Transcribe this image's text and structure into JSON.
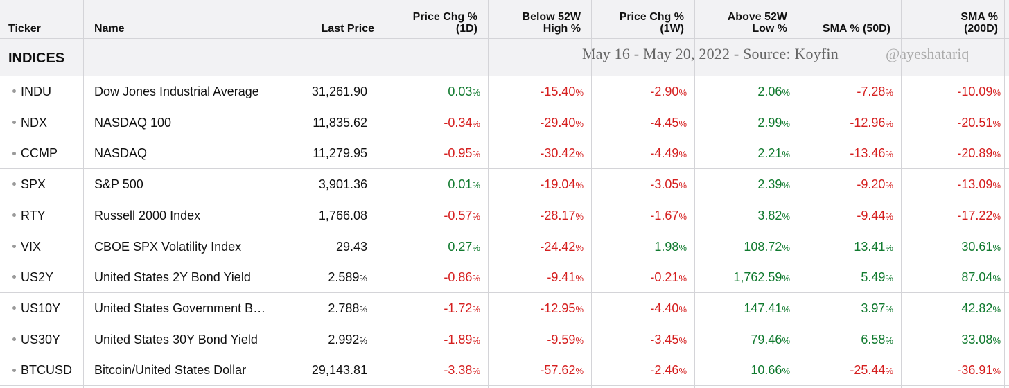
{
  "header": {
    "columns": [
      {
        "line1": "",
        "line2": "Ticker"
      },
      {
        "line1": "",
        "line2": "Name"
      },
      {
        "line1": "",
        "line2": "Last Price"
      },
      {
        "line1": "Price Chg %",
        "line2": "(1D)"
      },
      {
        "line1": "Below 52W",
        "line2": "High %"
      },
      {
        "line1": "Price Chg %",
        "line2": "(1W)"
      },
      {
        "line1": "Above 52W",
        "line2": "Low %"
      },
      {
        "line1": "",
        "line2": "SMA % (50D)"
      },
      {
        "line1": "SMA %",
        "line2": "(200D)"
      }
    ]
  },
  "section": {
    "title": "INDICES",
    "watermark": "May 16 - May 20, 2022 - Source: Koyfin",
    "handle": "@ayeshatariq"
  },
  "colors": {
    "positive": "#117a2f",
    "negative": "#d51f1f"
  },
  "rows": [
    {
      "ticker": "INDU",
      "name": "Dow Jones Industrial Average",
      "price": "31,261.90",
      "price_pct": false,
      "chg1d": "0.03",
      "below52": "-15.40",
      "chg1w": "-2.90",
      "above52": "2.06",
      "sma50": "-7.28",
      "sma200": "-10.09"
    },
    {
      "ticker": "NDX",
      "name": "NASDAQ 100",
      "price": "11,835.62",
      "price_pct": false,
      "chg1d": "-0.34",
      "below52": "-29.40",
      "chg1w": "-4.45",
      "above52": "2.99",
      "sma50": "-12.96",
      "sma200": "-20.51"
    },
    {
      "ticker": "CCMP",
      "name": "NASDAQ",
      "price": "11,279.95",
      "price_pct": false,
      "chg1d": "-0.95",
      "below52": "-30.42",
      "chg1w": "-4.49",
      "above52": "2.21",
      "sma50": "-13.46",
      "sma200": "-20.89"
    },
    {
      "ticker": "SPX",
      "name": "S&P 500",
      "price": "3,901.36",
      "price_pct": false,
      "chg1d": "0.01",
      "below52": "-19.04",
      "chg1w": "-3.05",
      "above52": "2.39",
      "sma50": "-9.20",
      "sma200": "-13.09"
    },
    {
      "ticker": "RTY",
      "name": "Russell 2000 Index",
      "price": "1,766.08",
      "price_pct": false,
      "chg1d": "-0.57",
      "below52": "-28.17",
      "chg1w": "-1.67",
      "above52": "3.82",
      "sma50": "-9.44",
      "sma200": "-17.22"
    },
    {
      "ticker": "VIX",
      "name": "CBOE SPX Volatility Index",
      "price": "29.43",
      "price_pct": false,
      "chg1d": "0.27",
      "below52": "-24.42",
      "chg1w": "1.98",
      "above52": "108.72",
      "sma50": "13.41",
      "sma200": "30.61"
    },
    {
      "ticker": "US2Y",
      "name": "United States 2Y Bond Yield",
      "price": "2.589",
      "price_pct": true,
      "chg1d": "-0.86",
      "below52": "-9.41",
      "chg1w": "-0.21",
      "above52": "1,762.59",
      "sma50": "5.49",
      "sma200": "87.04"
    },
    {
      "ticker": "US10Y",
      "name": "United States Government B…",
      "price": "2.788",
      "price_pct": true,
      "chg1d": "-1.72",
      "below52": "-12.95",
      "chg1w": "-4.40",
      "above52": "147.41",
      "sma50": "3.97",
      "sma200": "42.82"
    },
    {
      "ticker": "US30Y",
      "name": "United States 30Y Bond Yield",
      "price": "2.992",
      "price_pct": true,
      "chg1d": "-1.89",
      "below52": "-9.59",
      "chg1w": "-3.45",
      "above52": "79.46",
      "sma50": "6.58",
      "sma200": "33.08"
    },
    {
      "ticker": "BTCUSD",
      "name": "Bitcoin/United States Dollar",
      "price": "29,143.81",
      "price_pct": false,
      "chg1d": "-3.38",
      "below52": "-57.62",
      "chg1w": "-2.46",
      "above52": "10.66",
      "sma50": "-25.44",
      "sma200": "-36.91"
    }
  ]
}
